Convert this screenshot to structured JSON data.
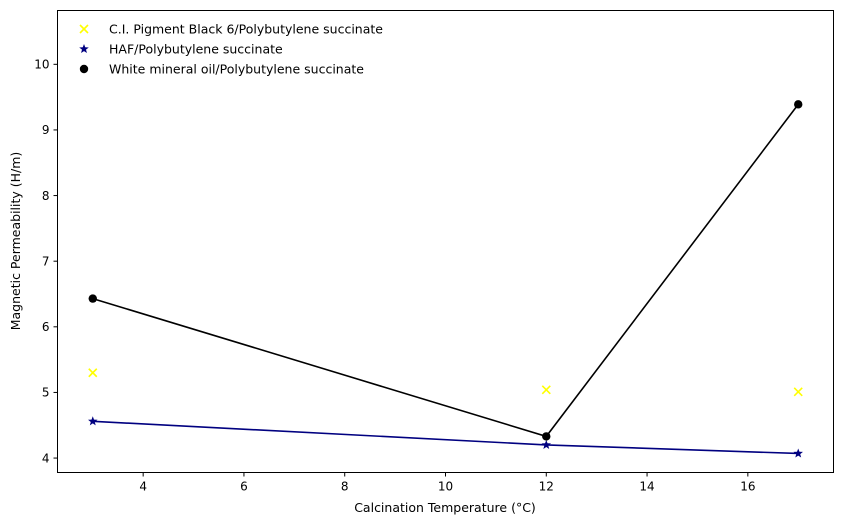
{
  "chart_data": {
    "type": "scatter",
    "title": "",
    "xlabel": "Calcination Temperature (°C)",
    "ylabel": "Magnetic Permeability (H/m)",
    "xlim": [
      2.3,
      17.7
    ],
    "ylim": [
      3.78,
      10.82
    ],
    "xticks": [
      4,
      6,
      8,
      10,
      12,
      14,
      16
    ],
    "yticks": [
      4,
      5,
      6,
      7,
      8,
      9,
      10
    ],
    "grid": false,
    "legend_position": "top-left",
    "series": [
      {
        "name": "C.I. Pigment Black 6/Polybutylene succinate",
        "marker": "x",
        "color": "#ffff00",
        "line": false,
        "x": [
          3,
          12,
          17
        ],
        "y": [
          5.3,
          5.04,
          5.01
        ]
      },
      {
        "name": "HAF/Polybutylene succinate",
        "marker": "star",
        "color": "#000080",
        "line": true,
        "x": [
          3,
          12,
          17
        ],
        "y": [
          4.56,
          4.2,
          4.07
        ]
      },
      {
        "name": "White mineral oil/Polybutylene succinate",
        "marker": "circle",
        "color": "#000000",
        "line": true,
        "x": [
          3,
          12,
          17
        ],
        "y": [
          6.43,
          4.33,
          9.39
        ]
      }
    ]
  }
}
